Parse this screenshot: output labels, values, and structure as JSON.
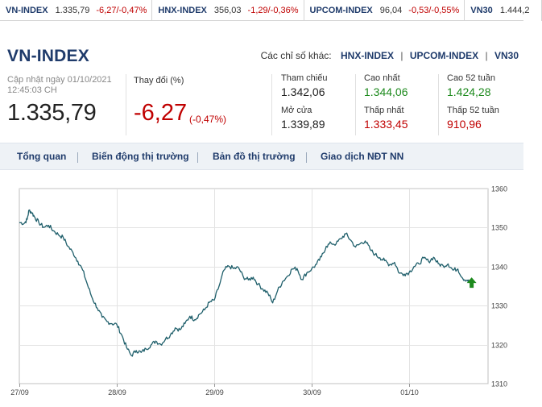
{
  "ticker": [
    {
      "name": "VN-INDEX",
      "value": "1.335,79",
      "change": "-6,27/-0,47%"
    },
    {
      "name": "HNX-INDEX",
      "value": "356,03",
      "change": "-1,29/-0,36%"
    },
    {
      "name": "UPCOM-INDEX",
      "value": "96,04",
      "change": "-0,53/-0,55%"
    },
    {
      "name": "VN30",
      "value": "1.444,2",
      "change": ""
    }
  ],
  "header": {
    "title": "VN-INDEX",
    "other_label": "Các chỉ số khác:",
    "other_links": [
      "HNX-INDEX",
      "UPCOM-INDEX",
      "VN30"
    ],
    "separator": "|"
  },
  "summary": {
    "updated_line1": "Cập nhật ngày 01/10/2021",
    "updated_line2": "12:45:03 CH",
    "current_value": "1.335,79",
    "change_label": "Thay đổi (%)",
    "change_value": "-6,27",
    "change_pct": "(-0,47%)",
    "stats": [
      {
        "label": "Tham chiếu",
        "value": "1.342,06",
        "color": "#222222"
      },
      {
        "label": "Cao nhất",
        "value": "1.344,06",
        "color": "#1d8a1d"
      },
      {
        "label": "Cao 52 tuần",
        "value": "1.424,28",
        "color": "#1d8a1d"
      },
      {
        "label": "Mở cửa",
        "value": "1.339,89",
        "color": "#222222"
      },
      {
        "label": "Thấp nhất",
        "value": "1.333,45",
        "color": "#c00000"
      },
      {
        "label": "Thấp 52 tuần",
        "value": "910,96",
        "color": "#c00000"
      }
    ]
  },
  "tabs": [
    "Tổng quan",
    "Biến động thị trường",
    "Bản đồ thị trường",
    "Giao dịch NĐT NN"
  ],
  "colors": {
    "brand": "#1f3b6b",
    "up": "#1d8a1d",
    "down": "#c00000",
    "line": "#1f5f6b"
  },
  "chart_data": {
    "type": "line",
    "x_ticks": [
      "27/09",
      "28/09",
      "29/09",
      "30/09",
      "01/10"
    ],
    "y_ticks": [
      1310,
      1320,
      1330,
      1340,
      1350,
      1360
    ],
    "ylim": [
      1310,
      1360
    ],
    "grid": true,
    "series": [
      {
        "values": [
          [
            0.0,
            1351.3
          ],
          [
            0.05,
            1351.1
          ],
          [
            0.08,
            1352.1
          ],
          [
            0.1,
            1354.5
          ],
          [
            0.13,
            1353.8
          ],
          [
            0.16,
            1352.6
          ],
          [
            0.2,
            1351.3
          ],
          [
            0.25,
            1350.1
          ],
          [
            0.3,
            1350.6
          ],
          [
            0.35,
            1349.2
          ],
          [
            0.4,
            1348.2
          ],
          [
            0.45,
            1347.5
          ],
          [
            0.5,
            1345.2
          ],
          [
            0.55,
            1343.6
          ],
          [
            0.6,
            1341.4
          ],
          [
            0.65,
            1339.1
          ],
          [
            0.7,
            1335.3
          ],
          [
            0.75,
            1331.8
          ],
          [
            0.8,
            1329.4
          ],
          [
            0.85,
            1327.0
          ],
          [
            0.9,
            1325.9
          ],
          [
            0.95,
            1325.4
          ],
          [
            1.0,
            1325.2
          ],
          [
            1.05,
            1322.5
          ],
          [
            1.1,
            1319.3
          ],
          [
            1.15,
            1317.2
          ],
          [
            1.2,
            1318.5
          ],
          [
            1.25,
            1318.0
          ],
          [
            1.3,
            1318.9
          ],
          [
            1.35,
            1319.9
          ],
          [
            1.4,
            1320.9
          ],
          [
            1.45,
            1320.1
          ],
          [
            1.5,
            1321.4
          ],
          [
            1.55,
            1322.5
          ],
          [
            1.6,
            1324.3
          ],
          [
            1.65,
            1323.8
          ],
          [
            1.7,
            1325.4
          ],
          [
            1.75,
            1327.3
          ],
          [
            1.8,
            1326.4
          ],
          [
            1.85,
            1327.8
          ],
          [
            1.9,
            1328.9
          ],
          [
            1.95,
            1330.8
          ],
          [
            2.0,
            1331.4
          ],
          [
            2.05,
            1335.0
          ],
          [
            2.1,
            1339.1
          ],
          [
            2.15,
            1340.1
          ],
          [
            2.2,
            1339.5
          ],
          [
            2.25,
            1339.7
          ],
          [
            2.3,
            1337.3
          ],
          [
            2.35,
            1336.6
          ],
          [
            2.4,
            1337.3
          ],
          [
            2.45,
            1335.5
          ],
          [
            2.5,
            1334.2
          ],
          [
            2.55,
            1333.3
          ],
          [
            2.6,
            1330.7
          ],
          [
            2.65,
            1333.8
          ],
          [
            2.7,
            1336.1
          ],
          [
            2.75,
            1337.5
          ],
          [
            2.8,
            1339.4
          ],
          [
            2.85,
            1339.5
          ],
          [
            2.9,
            1336.7
          ],
          [
            2.95,
            1338.4
          ],
          [
            3.0,
            1339.4
          ],
          [
            3.05,
            1340.6
          ],
          [
            3.1,
            1342.5
          ],
          [
            3.15,
            1345.2
          ],
          [
            3.2,
            1346.0
          ],
          [
            3.25,
            1345.8
          ],
          [
            3.3,
            1347.2
          ],
          [
            3.35,
            1348.4
          ],
          [
            3.4,
            1346.8
          ],
          [
            3.45,
            1345.0
          ],
          [
            3.5,
            1345.9
          ],
          [
            3.55,
            1346.6
          ],
          [
            3.6,
            1344.4
          ],
          [
            3.65,
            1343.1
          ],
          [
            3.7,
            1342.3
          ],
          [
            3.75,
            1341.5
          ],
          [
            3.8,
            1340.5
          ],
          [
            3.85,
            1341.1
          ],
          [
            3.9,
            1338.3
          ],
          [
            3.95,
            1338.1
          ],
          [
            4.0,
            1338.5
          ],
          [
            4.05,
            1340.0
          ],
          [
            4.1,
            1340.7
          ],
          [
            4.15,
            1342.2
          ],
          [
            4.2,
            1341.3
          ],
          [
            4.25,
            1342.4
          ],
          [
            4.3,
            1340.7
          ],
          [
            4.35,
            1340.2
          ],
          [
            4.4,
            1340.7
          ],
          [
            4.45,
            1339.1
          ],
          [
            4.5,
            1339.4
          ],
          [
            4.55,
            1337.0
          ],
          [
            4.6,
            1336.5
          ],
          [
            4.625,
            1335.8
          ]
        ]
      }
    ],
    "last_marker": {
      "value": 1335.8,
      "direction": "up"
    }
  }
}
